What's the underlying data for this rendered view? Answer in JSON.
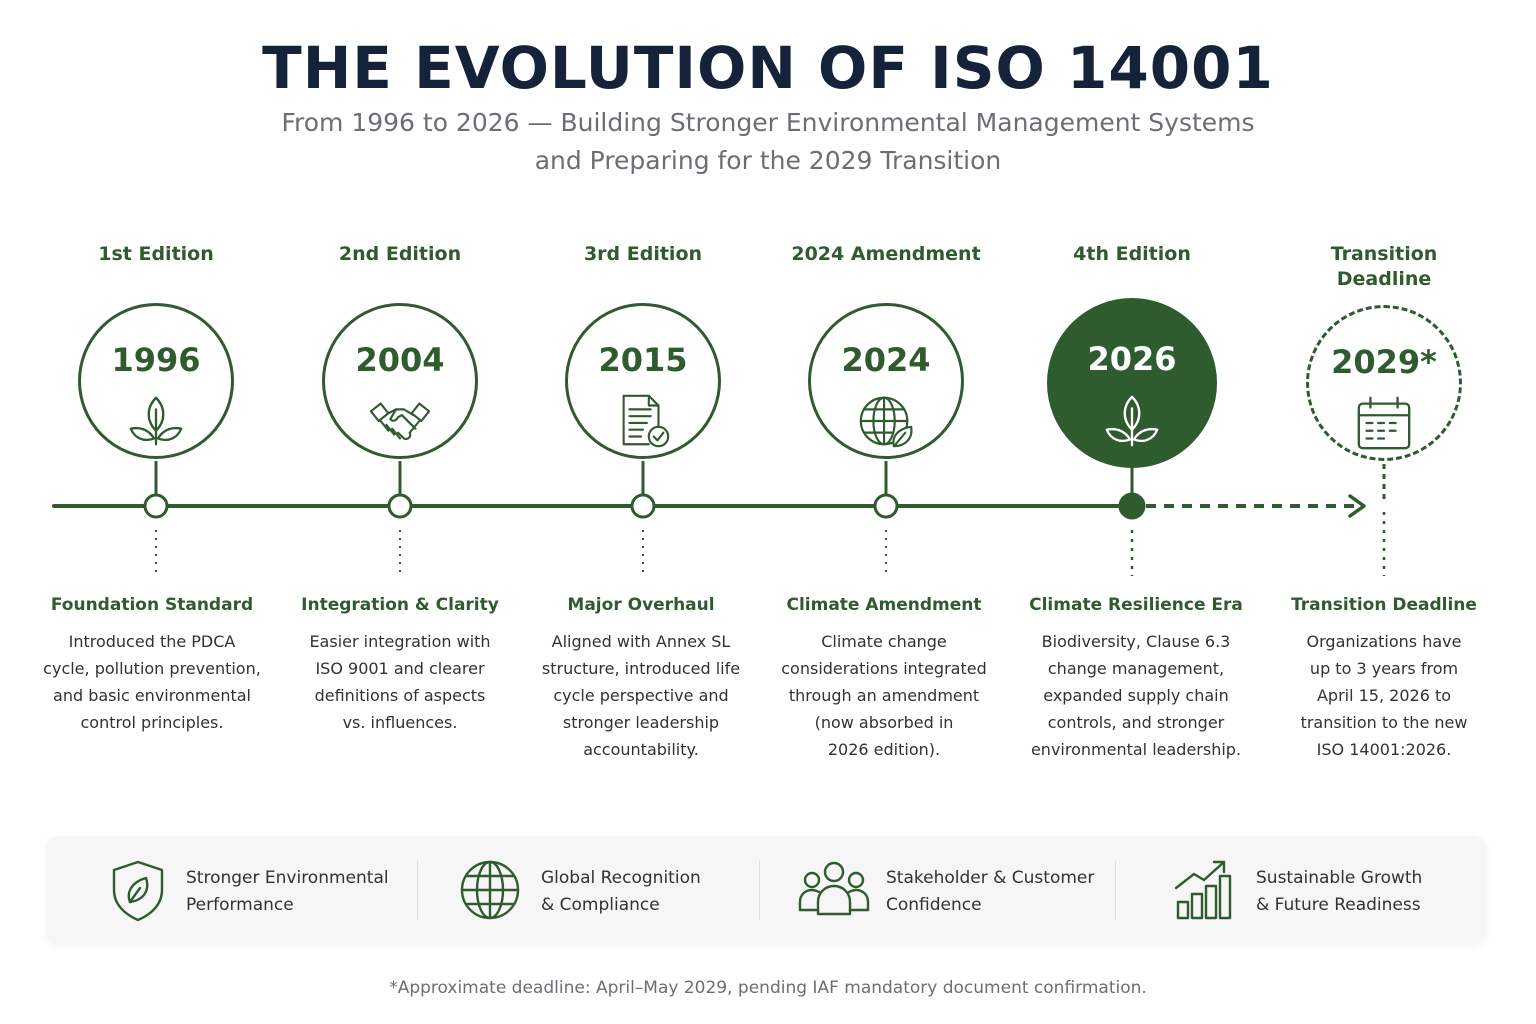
{
  "title": "THE EVOLUTION OF ISO 14001",
  "subtitle": {
    "line1": "From 1996 to 2026 — Building Stronger Environmental Management Systems",
    "line2": "and Preparing for the 2029 Transition"
  },
  "milestones": [
    {
      "edition": "1st Edition",
      "year": "1996",
      "icon": "leaf-icon",
      "card_title": "Foundation Standard",
      "desc": [
        "Introduced the PDCA",
        "cycle, pollution prevention,",
        "and basic environmental",
        "control principles."
      ]
    },
    {
      "edition": "2nd Edition",
      "year": "2004",
      "icon": "handshake-icon",
      "card_title": "Integration & Clarity",
      "desc": [
        "Easier integration with",
        "ISO 9001 and clearer",
        "definitions of aspects",
        "vs. influences."
      ]
    },
    {
      "edition": "3rd Edition",
      "year": "2015",
      "icon": "document-check-icon",
      "card_title": "Major Overhaul",
      "desc": [
        "Aligned with Annex SL",
        "structure, introduced life",
        "cycle perspective and",
        "stronger leadership",
        "accountability."
      ]
    },
    {
      "edition": "2024 Amendment",
      "year": "2024",
      "icon": "globe-leaf-icon",
      "card_title": "Climate Amendment",
      "desc": [
        "Climate change",
        "considerations integrated",
        "through an amendment",
        "(now absorbed in",
        "2026 edition)."
      ]
    },
    {
      "edition": "4th Edition",
      "year": "2026",
      "icon": "leaf-icon",
      "card_title": "Climate Resilience Era",
      "desc": [
        "Biodiversity, Clause 6.3",
        "change management,",
        "expanded supply chain",
        "controls, and stronger",
        "environmental leadership."
      ]
    },
    {
      "edition_line1": "Transition",
      "edition_line2": "Deadline",
      "year": "2029*",
      "icon": "calendar-icon",
      "card_title": "Transition Deadline",
      "desc": [
        "Organizations have",
        "up to 3 years from",
        "April 15, 2026 to",
        "transition to the new",
        "ISO 14001:2026."
      ]
    }
  ],
  "benefits": [
    {
      "icon": "shield-leaf-icon",
      "line1": "Stronger Environmental",
      "line2": "Performance"
    },
    {
      "icon": "globe-icon",
      "line1": "Global Recognition",
      "line2": "& Compliance"
    },
    {
      "icon": "people-icon",
      "line1": "Stakeholder & Customer",
      "line2": "Confidence"
    },
    {
      "icon": "growth-chart-icon",
      "line1": "Sustainable Growth",
      "line2": "& Future Readiness"
    }
  ],
  "footnote": "*Approximate deadline: April–May 2029, pending IAF mandatory document confirmation.",
  "colors": {
    "primary_green": "#2f5b2f",
    "filled_green": "#2e5c2e",
    "title_navy": "#14223a",
    "muted_gray": "#6b6f73"
  }
}
